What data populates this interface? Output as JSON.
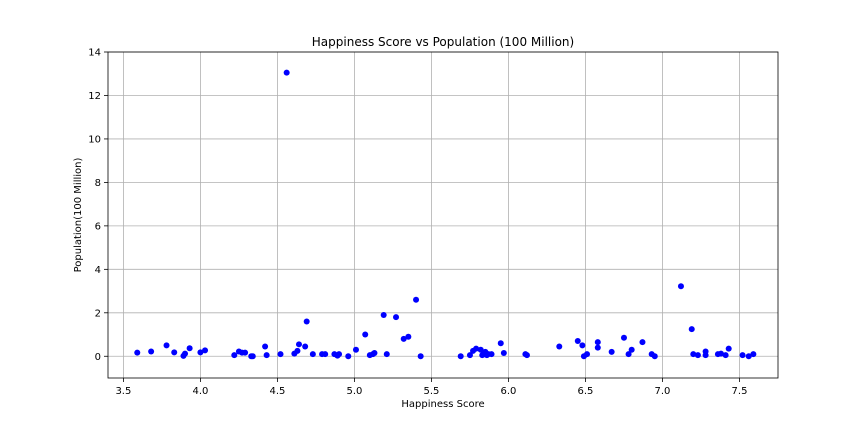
{
  "chart_data": {
    "type": "scatter",
    "title": "Happiness Score vs Population (100 Million)",
    "xlabel": "Happiness Score",
    "ylabel": "Population(100 Million)",
    "xlim": [
      3.4,
      7.75
    ],
    "ylim": [
      -1,
      14
    ],
    "xticks": [
      3.5,
      4.0,
      4.5,
      5.0,
      5.5,
      6.0,
      6.5,
      7.0,
      7.5
    ],
    "xtick_labels": [
      "3.5",
      "4.0",
      "4.5",
      "5.0",
      "5.5",
      "6.0",
      "6.5",
      "7.0",
      "7.5"
    ],
    "yticks": [
      0,
      2,
      4,
      6,
      8,
      10,
      12,
      14
    ],
    "ytick_labels": [
      "0",
      "2",
      "4",
      "6",
      "8",
      "10",
      "12",
      "14"
    ],
    "grid": true,
    "marker_color": "#0000ff",
    "points": [
      {
        "x": 3.59,
        "y": 0.17
      },
      {
        "x": 3.68,
        "y": 0.22
      },
      {
        "x": 3.78,
        "y": 0.5
      },
      {
        "x": 3.83,
        "y": 0.18
      },
      {
        "x": 3.89,
        "y": 0.02
      },
      {
        "x": 3.9,
        "y": 0.12
      },
      {
        "x": 3.93,
        "y": 0.37
      },
      {
        "x": 4.0,
        "y": 0.18
      },
      {
        "x": 4.03,
        "y": 0.27
      },
      {
        "x": 4.22,
        "y": 0.05
      },
      {
        "x": 4.25,
        "y": 0.22
      },
      {
        "x": 4.27,
        "y": 0.17
      },
      {
        "x": 4.29,
        "y": 0.17
      },
      {
        "x": 4.33,
        "y": 0.0
      },
      {
        "x": 4.34,
        "y": 0.0
      },
      {
        "x": 4.42,
        "y": 0.45
      },
      {
        "x": 4.43,
        "y": 0.05
      },
      {
        "x": 4.52,
        "y": 0.1
      },
      {
        "x": 4.56,
        "y": 13.05
      },
      {
        "x": 4.61,
        "y": 0.12
      },
      {
        "x": 4.63,
        "y": 0.25
      },
      {
        "x": 4.64,
        "y": 0.55
      },
      {
        "x": 4.68,
        "y": 0.45
      },
      {
        "x": 4.69,
        "y": 1.6
      },
      {
        "x": 4.73,
        "y": 0.1
      },
      {
        "x": 4.79,
        "y": 0.1
      },
      {
        "x": 4.81,
        "y": 0.1
      },
      {
        "x": 4.87,
        "y": 0.1
      },
      {
        "x": 4.89,
        "y": 0.03
      },
      {
        "x": 4.9,
        "y": 0.1
      },
      {
        "x": 4.96,
        "y": 0.0
      },
      {
        "x": 5.01,
        "y": 0.3
      },
      {
        "x": 5.07,
        "y": 1.0
      },
      {
        "x": 5.1,
        "y": 0.05
      },
      {
        "x": 5.12,
        "y": 0.1
      },
      {
        "x": 5.13,
        "y": 0.15
      },
      {
        "x": 5.19,
        "y": 1.9
      },
      {
        "x": 5.21,
        "y": 0.1
      },
      {
        "x": 5.27,
        "y": 1.8
      },
      {
        "x": 5.32,
        "y": 0.8
      },
      {
        "x": 5.35,
        "y": 0.9
      },
      {
        "x": 5.4,
        "y": 2.6
      },
      {
        "x": 5.43,
        "y": 0.0
      },
      {
        "x": 5.69,
        "y": 0.0
      },
      {
        "x": 5.75,
        "y": 0.05
      },
      {
        "x": 5.77,
        "y": 0.25
      },
      {
        "x": 5.79,
        "y": 0.35
      },
      {
        "x": 5.82,
        "y": 0.3
      },
      {
        "x": 5.83,
        "y": 0.05
      },
      {
        "x": 5.84,
        "y": 0.1
      },
      {
        "x": 5.85,
        "y": 0.2
      },
      {
        "x": 5.86,
        "y": 0.05
      },
      {
        "x": 5.87,
        "y": 0.1
      },
      {
        "x": 5.89,
        "y": 0.1
      },
      {
        "x": 5.95,
        "y": 0.6
      },
      {
        "x": 5.97,
        "y": 0.15
      },
      {
        "x": 6.11,
        "y": 0.1
      },
      {
        "x": 6.12,
        "y": 0.05
      },
      {
        "x": 6.33,
        "y": 0.45
      },
      {
        "x": 6.45,
        "y": 0.7
      },
      {
        "x": 6.48,
        "y": 0.5
      },
      {
        "x": 6.49,
        "y": 0.0
      },
      {
        "x": 6.51,
        "y": 0.1
      },
      {
        "x": 6.58,
        "y": 0.65
      },
      {
        "x": 6.58,
        "y": 0.4
      },
      {
        "x": 6.67,
        "y": 0.2
      },
      {
        "x": 6.75,
        "y": 0.85
      },
      {
        "x": 6.78,
        "y": 0.1
      },
      {
        "x": 6.8,
        "y": 0.3
      },
      {
        "x": 6.87,
        "y": 0.65
      },
      {
        "x": 6.93,
        "y": 0.1
      },
      {
        "x": 6.95,
        "y": 0.0
      },
      {
        "x": 7.12,
        "y": 3.22
      },
      {
        "x": 7.19,
        "y": 1.25
      },
      {
        "x": 7.2,
        "y": 0.1
      },
      {
        "x": 7.23,
        "y": 0.05
      },
      {
        "x": 7.28,
        "y": 0.05
      },
      {
        "x": 7.28,
        "y": 0.22
      },
      {
        "x": 7.36,
        "y": 0.1
      },
      {
        "x": 7.38,
        "y": 0.12
      },
      {
        "x": 7.41,
        "y": 0.05
      },
      {
        "x": 7.43,
        "y": 0.35
      },
      {
        "x": 7.52,
        "y": 0.05
      },
      {
        "x": 7.56,
        "y": 0.0
      },
      {
        "x": 7.59,
        "y": 0.1
      }
    ]
  }
}
